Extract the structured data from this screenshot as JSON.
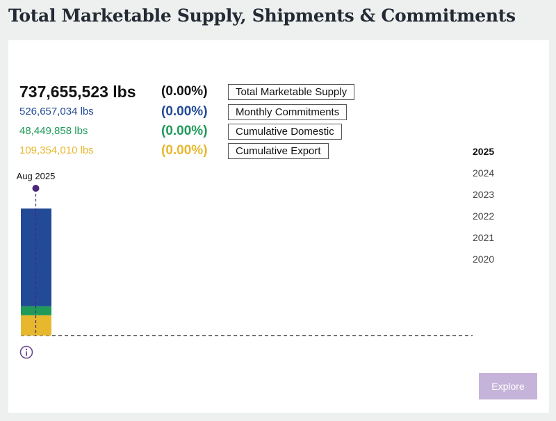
{
  "page": {
    "title": "Total Marketable Supply, Shipments & Commitments",
    "explore_label": "Explore",
    "info_icon": "info-circle-icon"
  },
  "stats": [
    {
      "key": "total",
      "value": "737,655,523 lbs",
      "pct": "(0.00%)",
      "legend": "Total Marketable Supply",
      "color": "#111111"
    },
    {
      "key": "monthly",
      "value": "526,657,034 lbs",
      "pct": "(0.00%)",
      "legend": "Monthly Commitments",
      "color": "#234a96"
    },
    {
      "key": "domestic",
      "value": "48,449,858 lbs",
      "pct": "(0.00%)",
      "legend": "Cumulative Domestic",
      "color": "#1f9a59"
    },
    {
      "key": "export",
      "value": "109,354,010 lbs",
      "pct": "(0.00%)",
      "legend": "Cumulative Export",
      "color": "#e7b82e"
    }
  ],
  "years": {
    "selected": "2025",
    "items": [
      "2025",
      "2024",
      "2023",
      "2022",
      "2021",
      "2020"
    ]
  },
  "colors": {
    "monthly": "#234a96",
    "domestic": "#1f9a59",
    "export": "#e7b82e",
    "marker": "#4b2579",
    "accent": "#6d4a92",
    "explore_bg": "#c6b3d9"
  },
  "chart_data": {
    "type": "bar",
    "stacked": true,
    "categories": [
      "Aug 2025"
    ],
    "highlight": "Aug 2025",
    "series": [
      {
        "name": "Cumulative Export",
        "key": "export",
        "values": [
          109354010
        ]
      },
      {
        "name": "Cumulative Domestic",
        "key": "domestic",
        "values": [
          48449858
        ]
      },
      {
        "name": "Monthly Commitments",
        "key": "monthly",
        "values": [
          526657034
        ]
      }
    ],
    "total": [
      737655523
    ],
    "ylim": [
      0,
      737655523
    ],
    "baseline": "dashed"
  }
}
